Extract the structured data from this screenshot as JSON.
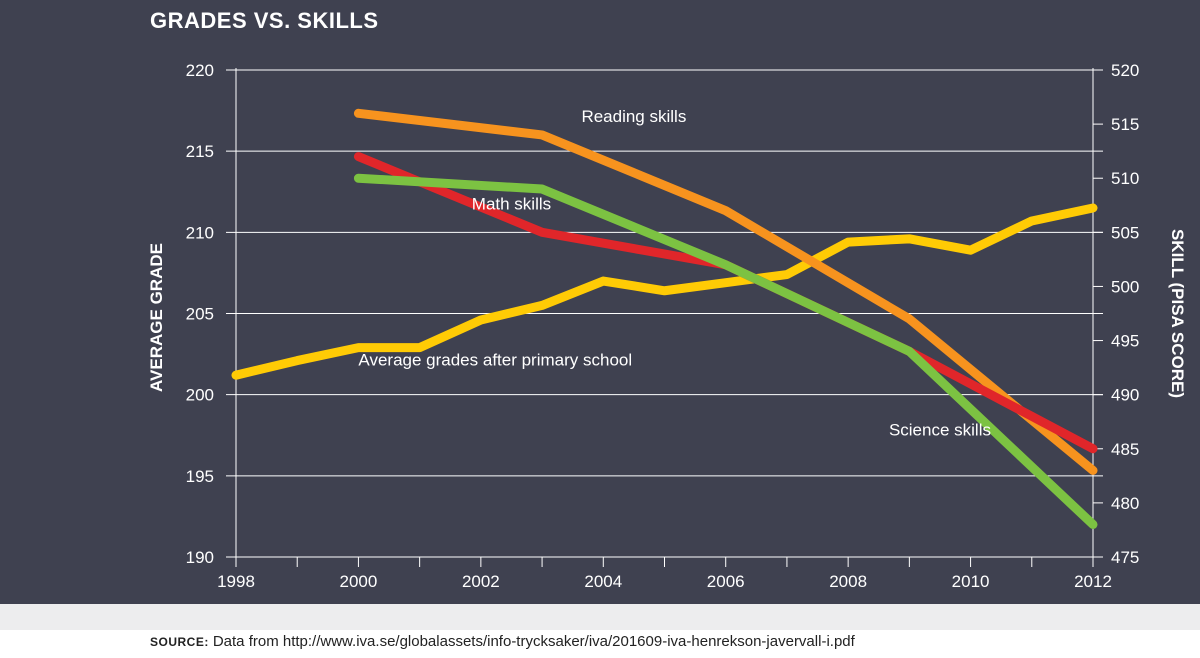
{
  "title": "GRADES VS. SKILLS",
  "source": {
    "label": "SOURCE:",
    "text": "Data from http://www.iva.se/globalassets/info-trycksaker/iva/201609-iva-henrekson-javervall-i.pdf"
  },
  "colors": {
    "background": "#3f4150",
    "axis": "#ffffff",
    "reading": "#f7931e",
    "math": "#e0262a",
    "science": "#7cc242",
    "grades": "#ffcb05"
  },
  "chart_data": {
    "type": "line",
    "title": "GRADES VS. SKILLS",
    "xlabel": "",
    "ylabel": "AVERAGE GRADE",
    "y2label": "SKILL (PISA SCORE)",
    "xlim": [
      1998,
      2012
    ],
    "ylim": [
      190,
      220
    ],
    "y2lim": [
      475,
      520
    ],
    "x_ticks": [
      1998,
      2000,
      2002,
      2004,
      2006,
      2008,
      2010,
      2012
    ],
    "y_ticks": [
      190,
      195,
      200,
      205,
      210,
      215,
      220
    ],
    "y2_ticks": [
      475,
      480,
      485,
      490,
      495,
      500,
      505,
      510,
      515,
      520
    ],
    "grid": "horizontal",
    "series": [
      {
        "key": "grades",
        "name": "Average grades after primary school",
        "axis": "left",
        "x": [
          1998,
          1999,
          2000,
          2001,
          2002,
          2003,
          2004,
          2005,
          2006,
          2007,
          2008,
          2009,
          2010,
          2011,
          2012
        ],
        "values": [
          201.2,
          202.1,
          202.9,
          202.9,
          204.6,
          205.5,
          207.0,
          206.4,
          206.9,
          207.4,
          209.4,
          209.6,
          208.9,
          210.7,
          211.5
        ],
        "label_at": [
          2000,
          201.8
        ]
      },
      {
        "key": "reading",
        "name": "Reading skills",
        "axis": "right",
        "x": [
          2000,
          2003,
          2006,
          2009,
          2012
        ],
        "values": [
          516,
          514,
          507,
          497,
          483
        ],
        "label_at": [
          2004.5,
          216.8
        ]
      },
      {
        "key": "math",
        "name": "Math skills",
        "axis": "right",
        "x": [
          2000,
          2003,
          2006,
          2009,
          2012
        ],
        "values": [
          512,
          505,
          502,
          494,
          485
        ],
        "label_at": [
          2002.5,
          211.4
        ]
      },
      {
        "key": "science",
        "name": "Science skills",
        "axis": "right",
        "x": [
          2000,
          2003,
          2006,
          2009,
          2012
        ],
        "values": [
          510,
          509,
          502,
          494,
          478
        ],
        "label_at": [
          2009.5,
          197.5
        ]
      }
    ]
  }
}
